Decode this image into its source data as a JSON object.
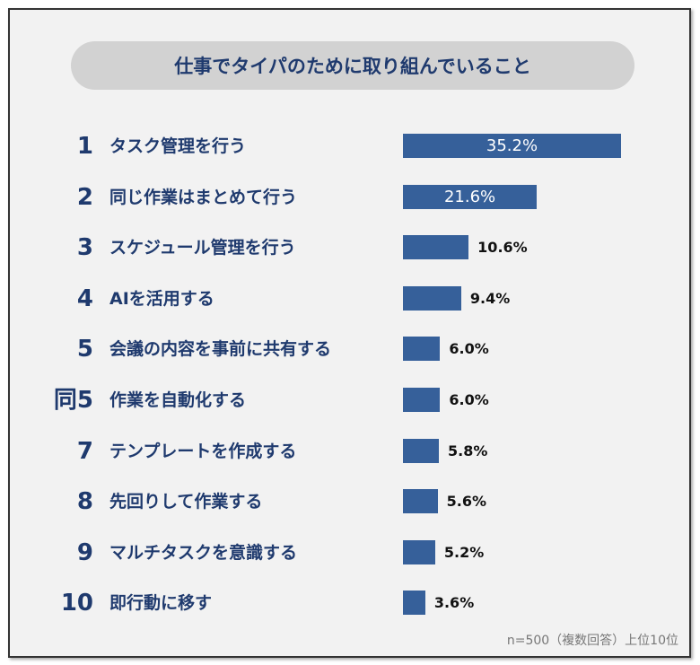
{
  "chart_data": {
    "type": "bar",
    "orientation": "horizontal",
    "title": "仕事でタイパのために取り組んでいること",
    "ranks": [
      "1",
      "2",
      "3",
      "4",
      "5",
      "同5",
      "7",
      "8",
      "9",
      "10"
    ],
    "categories": [
      "タスク管理を行う",
      "同じ作業はまとめて行う",
      "スケジュール管理を行う",
      "AIを活用する",
      "会議の内容を事前に共有する",
      "作業を自動化する",
      "テンプレートを作成する",
      "先回りして作業する",
      "マルチタスクを意識する",
      "即行動に移す"
    ],
    "values": [
      35.2,
      21.6,
      10.6,
      9.4,
      6.0,
      6.0,
      5.8,
      5.6,
      5.2,
      3.6
    ],
    "value_labels": [
      "35.2%",
      "21.6%",
      "10.6%",
      "9.4%",
      "6.0%",
      "6.0%",
      "5.8%",
      "5.6%",
      "5.2%",
      "3.6%"
    ],
    "unit": "%",
    "note": "n=500（複数回答）上位10位",
    "colors": {
      "bar": "#36609a",
      "text": "#1f3a6e",
      "title_bg": "#d2d2d2",
      "background": "#f2f2f2"
    }
  }
}
